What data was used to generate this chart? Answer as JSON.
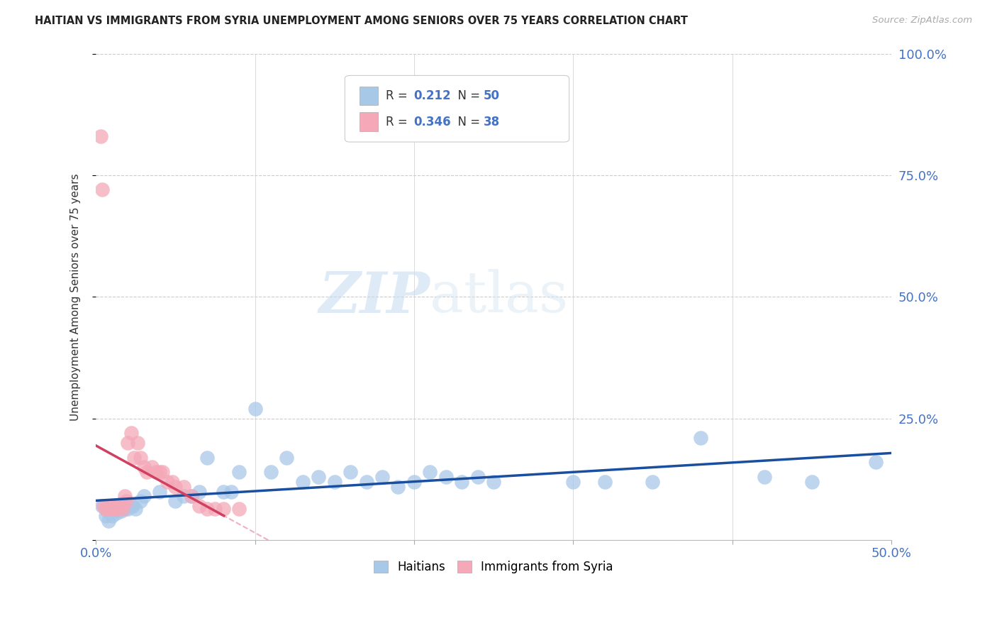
{
  "title": "HAITIAN VS IMMIGRANTS FROM SYRIA UNEMPLOYMENT AMONG SENIORS OVER 75 YEARS CORRELATION CHART",
  "source": "Source: ZipAtlas.com",
  "tick_color": "#4472c4",
  "ylabel": "Unemployment Among Seniors over 75 years",
  "xlim": [
    0,
    0.5
  ],
  "ylim": [
    0,
    1.0
  ],
  "haitians_color": "#a8c8e8",
  "syria_color": "#f4a8b8",
  "trend_blue": "#1a4fa0",
  "trend_pink": "#d04060",
  "trend_pink_dashed": "#f0b0c0",
  "watermark_zip": "ZIP",
  "watermark_atlas": "atlas",
  "haitians_x": [
    0.004,
    0.006,
    0.007,
    0.008,
    0.009,
    0.01,
    0.011,
    0.013,
    0.014,
    0.016,
    0.018,
    0.019,
    0.02,
    0.022,
    0.023,
    0.025,
    0.028,
    0.03,
    0.04,
    0.05,
    0.055,
    0.06,
    0.065,
    0.07,
    0.08,
    0.085,
    0.09,
    0.1,
    0.11,
    0.12,
    0.13,
    0.14,
    0.15,
    0.16,
    0.17,
    0.18,
    0.19,
    0.2,
    0.21,
    0.22,
    0.23,
    0.24,
    0.25,
    0.3,
    0.32,
    0.35,
    0.38,
    0.42,
    0.45,
    0.49
  ],
  "haitians_y": [
    0.07,
    0.05,
    0.06,
    0.04,
    0.055,
    0.05,
    0.06,
    0.055,
    0.065,
    0.06,
    0.065,
    0.075,
    0.065,
    0.07,
    0.07,
    0.065,
    0.08,
    0.09,
    0.1,
    0.08,
    0.09,
    0.09,
    0.1,
    0.17,
    0.1,
    0.1,
    0.14,
    0.27,
    0.14,
    0.17,
    0.12,
    0.13,
    0.12,
    0.14,
    0.12,
    0.13,
    0.11,
    0.12,
    0.14,
    0.13,
    0.12,
    0.13,
    0.12,
    0.12,
    0.12,
    0.12,
    0.21,
    0.13,
    0.12,
    0.16
  ],
  "syria_x": [
    0.003,
    0.004,
    0.005,
    0.006,
    0.007,
    0.008,
    0.009,
    0.01,
    0.011,
    0.012,
    0.013,
    0.014,
    0.015,
    0.016,
    0.017,
    0.018,
    0.019,
    0.02,
    0.022,
    0.024,
    0.026,
    0.028,
    0.03,
    0.032,
    0.035,
    0.038,
    0.04,
    0.042,
    0.045,
    0.048,
    0.05,
    0.055,
    0.06,
    0.065,
    0.07,
    0.075,
    0.08,
    0.09
  ],
  "syria_y": [
    0.83,
    0.72,
    0.07,
    0.065,
    0.065,
    0.065,
    0.07,
    0.065,
    0.065,
    0.07,
    0.065,
    0.07,
    0.07,
    0.075,
    0.065,
    0.09,
    0.08,
    0.2,
    0.22,
    0.17,
    0.2,
    0.17,
    0.15,
    0.14,
    0.15,
    0.14,
    0.14,
    0.14,
    0.12,
    0.12,
    0.11,
    0.11,
    0.09,
    0.07,
    0.065,
    0.065,
    0.065,
    0.065
  ]
}
